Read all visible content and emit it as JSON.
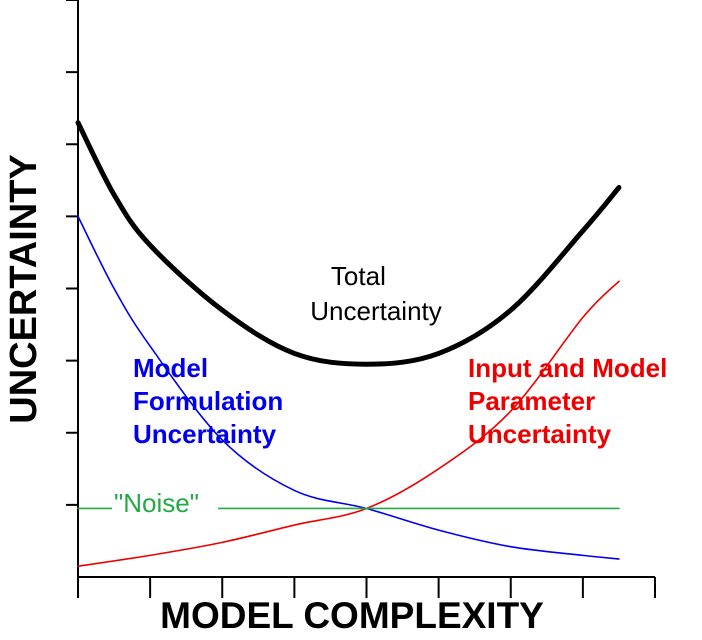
{
  "chart_data": {
    "type": "line",
    "xlabel": "MODEL COMPLEXITY",
    "ylabel": "UNCERTAINTY",
    "xlim": [
      0,
      8
    ],
    "ylim": [
      0,
      8
    ],
    "grid": false,
    "colors": {
      "total": "#000000",
      "model_formulation": "#0000ee",
      "input_parameter": "#ee0000",
      "noise": "#22aa44"
    },
    "series": [
      {
        "key": "total",
        "x": [
          0,
          0.5,
          1,
          2,
          3,
          4,
          5,
          6,
          7,
          7.5
        ],
        "y": [
          6.3,
          5.3,
          4.6,
          3.7,
          3.1,
          2.95,
          3.1,
          3.7,
          4.8,
          5.4
        ]
      },
      {
        "key": "model_formulation",
        "x": [
          0,
          0.5,
          1,
          2,
          3,
          4,
          5,
          6,
          7,
          7.5
        ],
        "y": [
          5.0,
          4.0,
          3.2,
          1.9,
          1.2,
          0.95,
          0.65,
          0.42,
          0.3,
          0.25
        ]
      },
      {
        "key": "input_parameter",
        "x": [
          0,
          1,
          2,
          3,
          4,
          5,
          6,
          7,
          7.5
        ],
        "y": [
          0.15,
          0.3,
          0.48,
          0.72,
          0.95,
          1.5,
          2.3,
          3.6,
          4.1
        ]
      },
      {
        "key": "noise",
        "x": [
          0,
          7.5
        ],
        "y": [
          0.95,
          0.95
        ]
      }
    ],
    "annotations": {
      "total": [
        "Total",
        "Uncertainty"
      ],
      "model_formulation": [
        "Model",
        "Formulation",
        "Uncertainty"
      ],
      "input_parameter": [
        "Input and Model",
        "Parameter",
        "Uncertainty"
      ],
      "noise": "\"Noise\""
    }
  }
}
